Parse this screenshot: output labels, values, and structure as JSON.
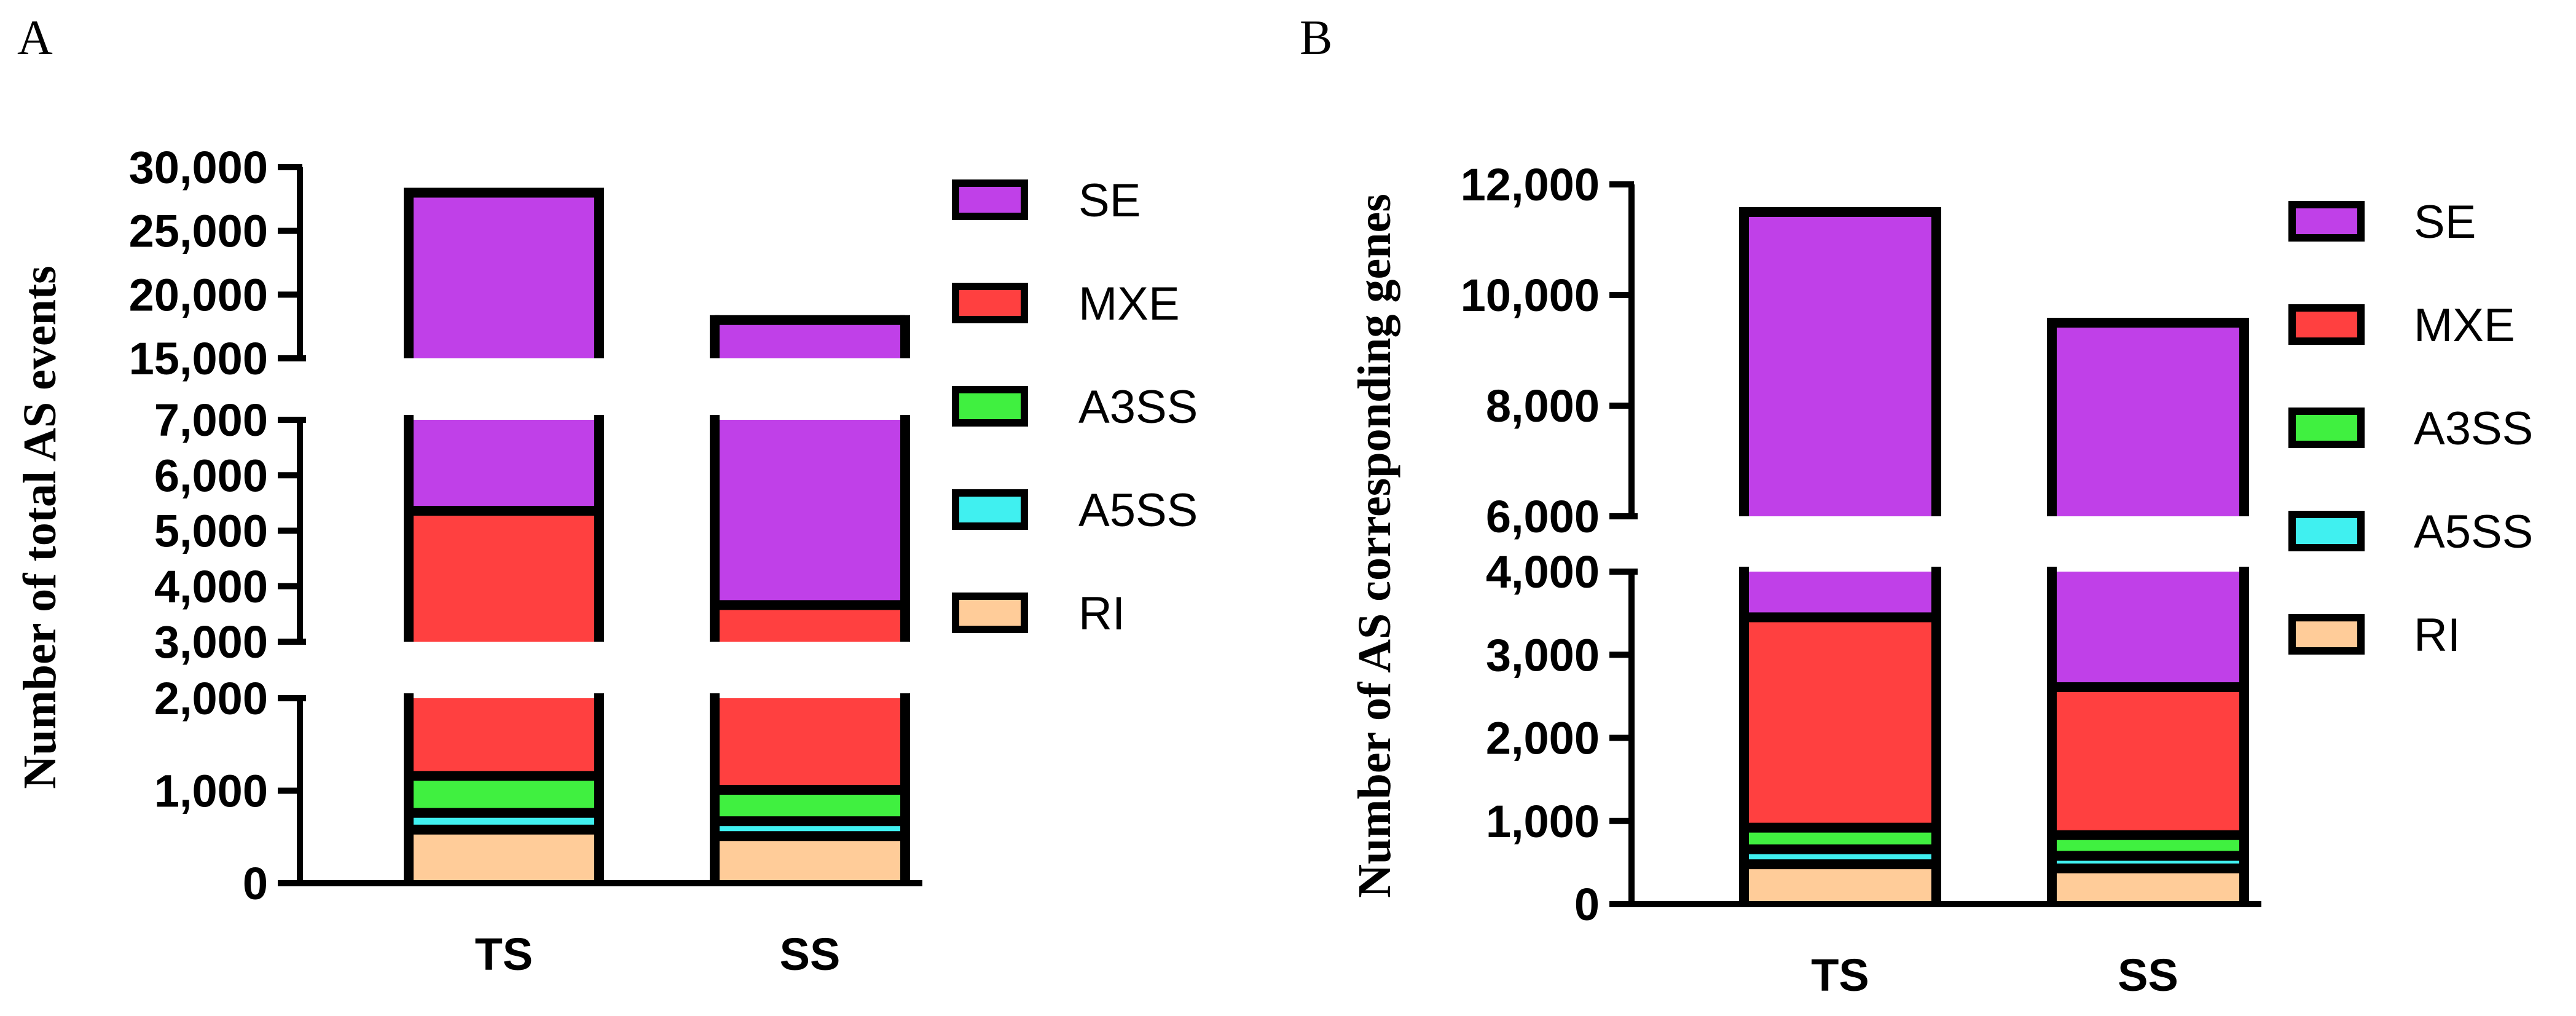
{
  "colors": {
    "SE": "#c040e8",
    "MXE": "#ff4040",
    "A3SS": "#40f040",
    "A5SS": "#40f0f0",
    "RI": "#ffcc99",
    "axis": "#000000"
  },
  "chart_data": [
    {
      "panel": "A",
      "type": "bar",
      "stacked": true,
      "ylabel": "Number of total AS events",
      "categories": [
        "TS",
        "SS"
      ],
      "series": [
        {
          "name": "RI",
          "values": [
            580,
            510
          ]
        },
        {
          "name": "A5SS",
          "values": [
            180,
            160
          ]
        },
        {
          "name": "A3SS",
          "values": [
            400,
            340
          ]
        },
        {
          "name": "MXE",
          "values": [
            4200,
            2650
          ]
        },
        {
          "name": "SE",
          "values": [
            22640,
            14340
          ]
        }
      ],
      "totals": [
        28000,
        18000
      ],
      "legend_order": [
        "SE",
        "MXE",
        "A3SS",
        "A5SS",
        "RI"
      ],
      "legend_position": "right",
      "axis_segments": [
        {
          "range": [
            0,
            2000
          ],
          "ticks": [
            0,
            1000,
            2000
          ]
        },
        {
          "range": [
            3000,
            7000
          ],
          "ticks": [
            3000,
            4000,
            5000,
            6000,
            7000
          ]
        },
        {
          "range": [
            15000,
            30000
          ],
          "ticks": [
            15000,
            20000,
            25000,
            30000
          ]
        }
      ],
      "tick_labels": {
        "0": "0",
        "1000": "1,000",
        "2000": "2,000",
        "3000": "3,000",
        "4000": "4,000",
        "5000": "5,000",
        "6000": "6,000",
        "7000": "7,000",
        "15000": "15,000",
        "20000": "20,000",
        "25000": "25,000",
        "30000": "30,000"
      }
    },
    {
      "panel": "B",
      "type": "bar",
      "stacked": true,
      "ylabel": "Number of AS corresponding genes",
      "categories": [
        "TS",
        "SS"
      ],
      "series": [
        {
          "name": "RI",
          "values": [
            480,
            430
          ]
        },
        {
          "name": "A5SS",
          "values": [
            180,
            150
          ]
        },
        {
          "name": "A3SS",
          "values": [
            260,
            250
          ]
        },
        {
          "name": "MXE",
          "values": [
            2530,
            1780
          ]
        },
        {
          "name": "SE",
          "values": [
            8050,
            6890
          ]
        }
      ],
      "totals": [
        11500,
        9500
      ],
      "legend_order": [
        "SE",
        "MXE",
        "A3SS",
        "A5SS",
        "RI"
      ],
      "legend_position": "right",
      "axis_segments": [
        {
          "range": [
            0,
            4000
          ],
          "ticks": [
            0,
            1000,
            2000,
            3000,
            4000
          ]
        },
        {
          "range": [
            6000,
            12000
          ],
          "ticks": [
            6000,
            8000,
            10000,
            12000
          ]
        }
      ],
      "tick_labels": {
        "0": "0",
        "1000": "1,000",
        "2000": "2,000",
        "3000": "3,000",
        "4000": "4,000",
        "6000": "6,000",
        "8000": "8,000",
        "10000": "10,000",
        "12000": "12,000"
      }
    }
  ]
}
